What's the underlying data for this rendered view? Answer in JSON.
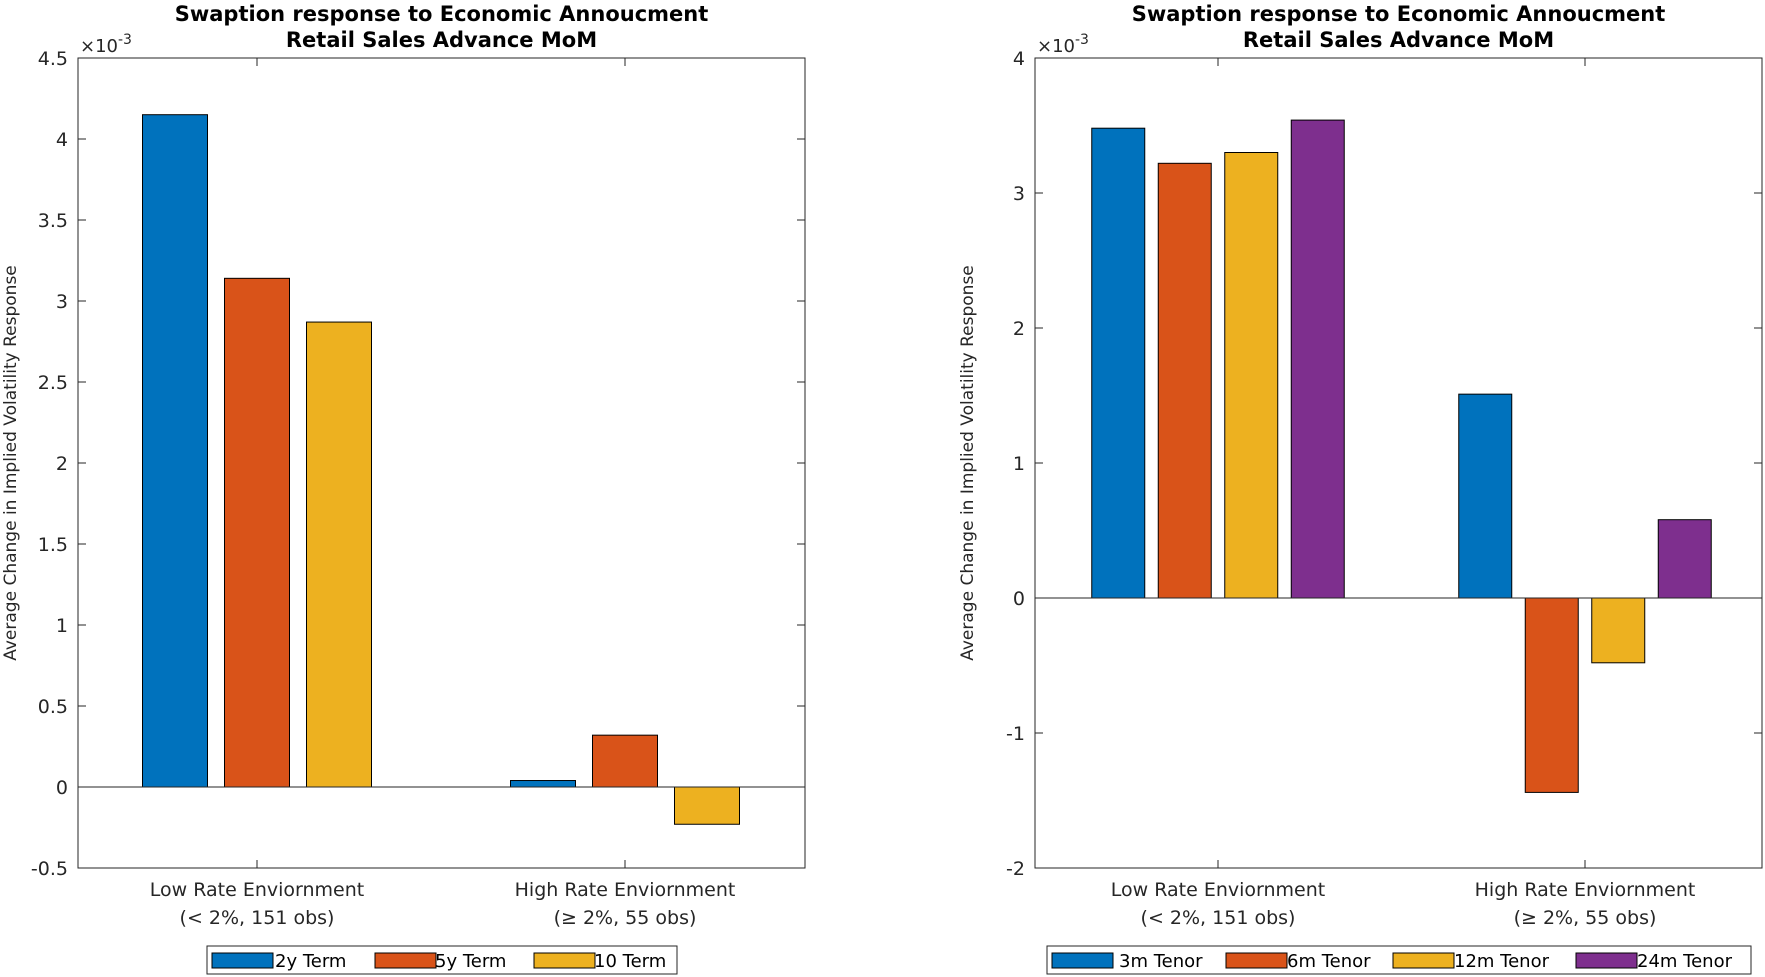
{
  "chart_data": [
    {
      "type": "bar",
      "title": "Swaption response to Economic Annoucment",
      "subtitle": "Retail Sales Advance MoM",
      "xlabel": "",
      "ylabel": "Average Change in Implied Volatility Response",
      "y_exponent_label": "×10",
      "y_exponent_power": "-3",
      "ylim": [
        -0.5,
        4.5
      ],
      "yticks": [
        -0.5,
        0,
        0.5,
        1,
        1.5,
        2,
        2.5,
        3,
        3.5,
        4,
        4.5
      ],
      "ytick_labels": [
        "-0.5",
        "0",
        "0.5",
        "1",
        "1.5",
        "2",
        "2.5",
        "3",
        "3.5",
        "4",
        "4.5"
      ],
      "categories": [
        [
          "Low Rate Enviornment",
          "(< 2%, 151 obs)"
        ],
        [
          "High Rate Enviornment",
          "(≥ 2%, 55 obs)"
        ]
      ],
      "series": [
        {
          "name": "2y Term",
          "color": "#0072BD",
          "values": [
            4.15,
            0.04
          ]
        },
        {
          "name": "5y Term",
          "color": "#D95319",
          "values": [
            3.14,
            0.32
          ]
        },
        {
          "name": "10 Term",
          "color": "#EDB120",
          "values": [
            2.87,
            -0.23
          ]
        }
      ],
      "legend_position": "bottom"
    },
    {
      "type": "bar",
      "title": "Swaption response to Economic Annoucment",
      "subtitle": "Retail Sales Advance MoM",
      "xlabel": "",
      "ylabel": "Average Change in Implied Volatility Response",
      "y_exponent_label": "×10",
      "y_exponent_power": "-3",
      "ylim": [
        -2,
        4
      ],
      "yticks": [
        -2,
        -1,
        0,
        1,
        2,
        3,
        4
      ],
      "ytick_labels": [
        "-2",
        "-1",
        "0",
        "1",
        "2",
        "3",
        "4"
      ],
      "categories": [
        [
          "Low Rate Enviornment",
          "(< 2%, 151 obs)"
        ],
        [
          "High Rate Enviornment",
          "(≥ 2%, 55 obs)"
        ]
      ],
      "series": [
        {
          "name": "3m Tenor",
          "color": "#0072BD",
          "values": [
            3.48,
            1.51
          ]
        },
        {
          "name": "6m Tenor",
          "color": "#D95319",
          "values": [
            3.22,
            -1.44
          ]
        },
        {
          "name": "12m Tenor",
          "color": "#EDB120",
          "values": [
            3.3,
            -0.48
          ]
        },
        {
          "name": "24m Tenor",
          "color": "#7E2F8E",
          "values": [
            3.54,
            0.58
          ]
        }
      ],
      "legend_position": "bottom"
    }
  ]
}
